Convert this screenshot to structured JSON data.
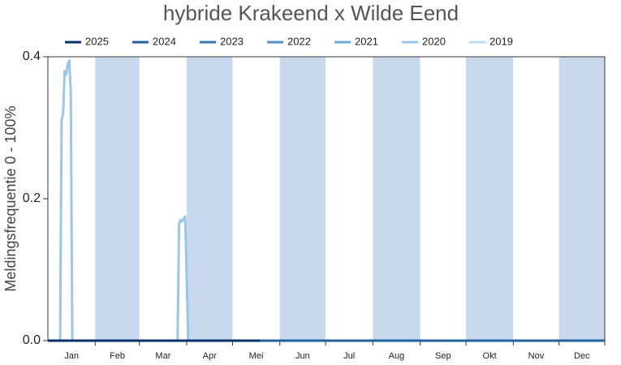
{
  "chart_data": {
    "type": "line",
    "title": "hybride Krakeend x Wilde Eend",
    "ylabel": "Meldingsfrequentie 0 - 100%",
    "categories": [
      "Jan",
      "Feb",
      "Mar",
      "Apr",
      "Mei",
      "Jun",
      "Jul",
      "Aug",
      "Sep",
      "Okt",
      "Nov",
      "Dec"
    ],
    "shaded_color": "#c8d8ee",
    "x": [
      1,
      9,
      10,
      11,
      12,
      13,
      14,
      15,
      16,
      17,
      86,
      87,
      88,
      89,
      90,
      91,
      93,
      140,
      366
    ],
    "xlim": [
      1,
      366
    ],
    "ylim": [
      0,
      0.4
    ],
    "yticks": [
      {
        "value": 0,
        "label": "0.0"
      },
      0.2,
      0.4
    ],
    "legend": "top",
    "series": [
      {
        "name": "2025",
        "color": "#08306b",
        "values": [
          0,
          0,
          0,
          0,
          0,
          0,
          0,
          0,
          0,
          0,
          0,
          0,
          0,
          0,
          0,
          0,
          0,
          0,
          null
        ]
      },
      {
        "name": "2024",
        "color": "#2161a3",
        "values": [
          0,
          0,
          0,
          0,
          0,
          0,
          0,
          0,
          0,
          0,
          0,
          0,
          0,
          0,
          0,
          0,
          0,
          0,
          0
        ]
      },
      {
        "name": "2023",
        "color": "#3878b8",
        "values": [
          0,
          0,
          0,
          0,
          0,
          0,
          0,
          0,
          0,
          0,
          0,
          0,
          0,
          0,
          0,
          0,
          0,
          0,
          0
        ]
      },
      {
        "name": "2022",
        "color": "#4f90c8",
        "values": [
          0,
          0,
          0,
          0,
          0,
          0,
          0,
          0,
          0,
          0,
          0,
          0,
          0,
          0,
          0,
          0,
          0,
          0,
          0
        ]
      },
      {
        "name": "2021",
        "color": "#6ea8d8",
        "values": [
          0,
          0,
          0,
          0,
          0,
          0,
          0,
          0,
          0,
          0,
          0,
          0,
          0,
          0,
          0,
          0,
          0,
          0,
          0
        ]
      },
      {
        "name": "2020",
        "color": "#9cc5ea",
        "values": [
          0,
          0,
          0.31,
          0.32,
          0.38,
          0.375,
          0.39,
          0.395,
          0.35,
          0,
          0,
          0.165,
          0.17,
          0.168,
          0.172,
          0.175,
          0,
          0,
          0
        ]
      },
      {
        "name": "2019",
        "color": "#b9dcf3",
        "values": [
          0,
          0,
          0,
          0,
          0,
          0,
          0,
          0,
          0,
          0,
          0,
          0,
          0,
          0,
          0,
          0,
          0,
          0,
          0
        ]
      }
    ]
  }
}
